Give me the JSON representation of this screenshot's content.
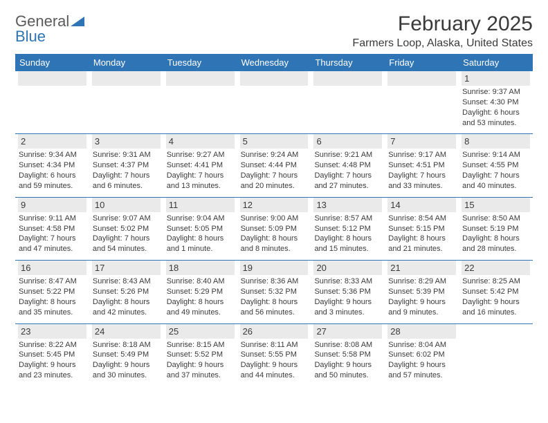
{
  "brand": {
    "text1": "General",
    "text2": "Blue"
  },
  "title": "February 2025",
  "subtitle": "Farmers Loop, Alaska, United States",
  "colors": {
    "header_bar": "#2f74b5",
    "cell_date_bg": "#eaeaea",
    "text": "#3a3a3a",
    "page_bg": "#ffffff"
  },
  "typography": {
    "title_fontsize_pt": 22,
    "subtitle_fontsize_pt": 12,
    "dayhead_fontsize_pt": 10,
    "cell_fontsize_pt": 8
  },
  "calendar": {
    "type": "table",
    "columns": [
      "Sunday",
      "Monday",
      "Tuesday",
      "Wednesday",
      "Thursday",
      "Friday",
      "Saturday"
    ],
    "weeks": [
      [
        null,
        null,
        null,
        null,
        null,
        null,
        {
          "d": "1",
          "sr": "9:37 AM",
          "ss": "4:30 PM",
          "dl": "6 hours and 53 minutes."
        }
      ],
      [
        {
          "d": "2",
          "sr": "9:34 AM",
          "ss": "4:34 PM",
          "dl": "6 hours and 59 minutes."
        },
        {
          "d": "3",
          "sr": "9:31 AM",
          "ss": "4:37 PM",
          "dl": "7 hours and 6 minutes."
        },
        {
          "d": "4",
          "sr": "9:27 AM",
          "ss": "4:41 PM",
          "dl": "7 hours and 13 minutes."
        },
        {
          "d": "5",
          "sr": "9:24 AM",
          "ss": "4:44 PM",
          "dl": "7 hours and 20 minutes."
        },
        {
          "d": "6",
          "sr": "9:21 AM",
          "ss": "4:48 PM",
          "dl": "7 hours and 27 minutes."
        },
        {
          "d": "7",
          "sr": "9:17 AM",
          "ss": "4:51 PM",
          "dl": "7 hours and 33 minutes."
        },
        {
          "d": "8",
          "sr": "9:14 AM",
          "ss": "4:55 PM",
          "dl": "7 hours and 40 minutes."
        }
      ],
      [
        {
          "d": "9",
          "sr": "9:11 AM",
          "ss": "4:58 PM",
          "dl": "7 hours and 47 minutes."
        },
        {
          "d": "10",
          "sr": "9:07 AM",
          "ss": "5:02 PM",
          "dl": "7 hours and 54 minutes."
        },
        {
          "d": "11",
          "sr": "9:04 AM",
          "ss": "5:05 PM",
          "dl": "8 hours and 1 minute."
        },
        {
          "d": "12",
          "sr": "9:00 AM",
          "ss": "5:09 PM",
          "dl": "8 hours and 8 minutes."
        },
        {
          "d": "13",
          "sr": "8:57 AM",
          "ss": "5:12 PM",
          "dl": "8 hours and 15 minutes."
        },
        {
          "d": "14",
          "sr": "8:54 AM",
          "ss": "5:15 PM",
          "dl": "8 hours and 21 minutes."
        },
        {
          "d": "15",
          "sr": "8:50 AM",
          "ss": "5:19 PM",
          "dl": "8 hours and 28 minutes."
        }
      ],
      [
        {
          "d": "16",
          "sr": "8:47 AM",
          "ss": "5:22 PM",
          "dl": "8 hours and 35 minutes."
        },
        {
          "d": "17",
          "sr": "8:43 AM",
          "ss": "5:26 PM",
          "dl": "8 hours and 42 minutes."
        },
        {
          "d": "18",
          "sr": "8:40 AM",
          "ss": "5:29 PM",
          "dl": "8 hours and 49 minutes."
        },
        {
          "d": "19",
          "sr": "8:36 AM",
          "ss": "5:32 PM",
          "dl": "8 hours and 56 minutes."
        },
        {
          "d": "20",
          "sr": "8:33 AM",
          "ss": "5:36 PM",
          "dl": "9 hours and 3 minutes."
        },
        {
          "d": "21",
          "sr": "8:29 AM",
          "ss": "5:39 PM",
          "dl": "9 hours and 9 minutes."
        },
        {
          "d": "22",
          "sr": "8:25 AM",
          "ss": "5:42 PM",
          "dl": "9 hours and 16 minutes."
        }
      ],
      [
        {
          "d": "23",
          "sr": "8:22 AM",
          "ss": "5:45 PM",
          "dl": "9 hours and 23 minutes."
        },
        {
          "d": "24",
          "sr": "8:18 AM",
          "ss": "5:49 PM",
          "dl": "9 hours and 30 minutes."
        },
        {
          "d": "25",
          "sr": "8:15 AM",
          "ss": "5:52 PM",
          "dl": "9 hours and 37 minutes."
        },
        {
          "d": "26",
          "sr": "8:11 AM",
          "ss": "5:55 PM",
          "dl": "9 hours and 44 minutes."
        },
        {
          "d": "27",
          "sr": "8:08 AM",
          "ss": "5:58 PM",
          "dl": "9 hours and 50 minutes."
        },
        {
          "d": "28",
          "sr": "8:04 AM",
          "ss": "6:02 PM",
          "dl": "9 hours and 57 minutes."
        },
        null
      ]
    ],
    "labels": {
      "sunrise": "Sunrise:",
      "sunset": "Sunset:",
      "daylight": "Daylight:"
    }
  }
}
